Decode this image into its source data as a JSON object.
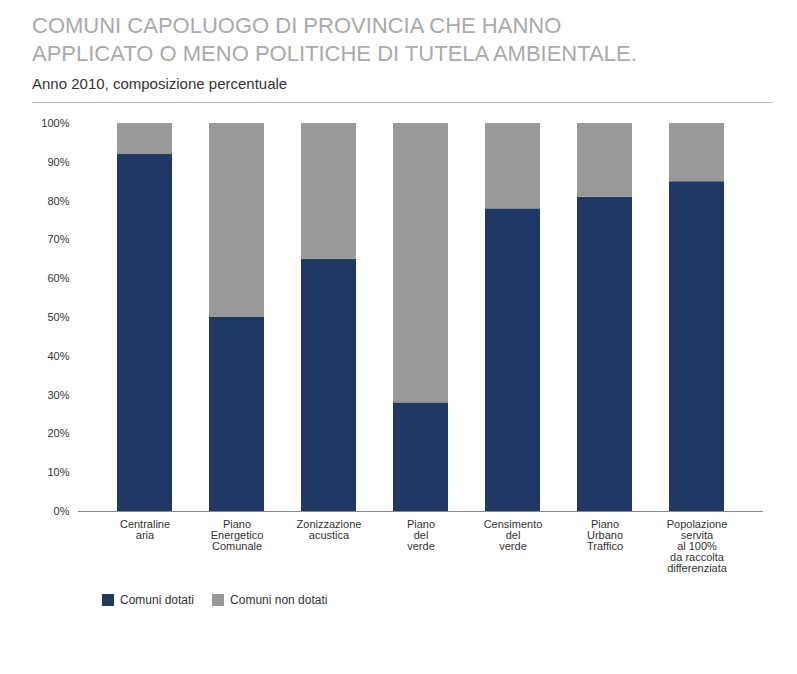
{
  "chart_data": {
    "type": "bar",
    "stacked": true,
    "title": "COMUNI CAPOLUOGO DI PROVINCIA CHE HANNO\nAPPLICATO O MENO POLITICHE DI TUTELA AMBIENTALE.",
    "subtitle": "Anno 2010, composizione percentuale",
    "categories": [
      "Centraline\naria",
      "Piano\nEnergetico\nComunale",
      "Zonizzazione\nacustica",
      "Piano\ndel\nverde",
      "Censimento\ndel\nverde",
      "Piano\nUrbano\nTraffico",
      "Popolazione\nservita\nal 100%\nda raccolta\ndifferenziata"
    ],
    "series": [
      {
        "name": "Comuni dotati",
        "color": "#1F3864",
        "values": [
          92,
          50,
          65,
          28,
          78,
          81,
          85
        ]
      },
      {
        "name": "Comuni non dotati",
        "color": "#999999",
        "values": [
          8,
          50,
          35,
          72,
          22,
          19,
          15
        ]
      }
    ],
    "ylim": [
      0,
      100
    ],
    "yticks": [
      {
        "value": 0,
        "label": "0%"
      },
      {
        "value": 10,
        "label": "10%"
      },
      {
        "value": 20,
        "label": "20%"
      },
      {
        "value": 30,
        "label": "30%"
      },
      {
        "value": 40,
        "label": "40%"
      },
      {
        "value": 50,
        "label": "50%"
      },
      {
        "value": 60,
        "label": "60%"
      },
      {
        "value": 70,
        "label": "70%"
      },
      {
        "value": 80,
        "label": "80%"
      },
      {
        "value": 90,
        "label": "90%"
      },
      {
        "value": 100,
        "label": "100%"
      }
    ],
    "grid": false,
    "legend": "bottom"
  }
}
